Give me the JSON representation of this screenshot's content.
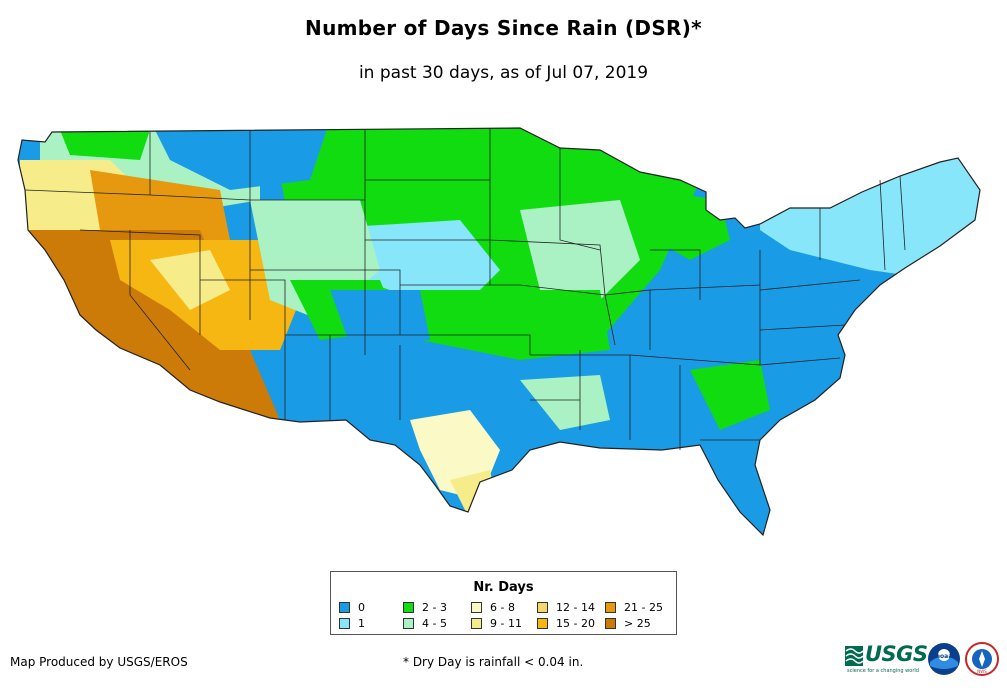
{
  "title": "Number of Days Since Rain (DSR)*",
  "subtitle": "in past 30 days, as of Jul 07, 2019",
  "legend": {
    "title": "Nr. Days",
    "items": [
      {
        "label": "0",
        "color": "#1a9be6"
      },
      {
        "label": "1",
        "color": "#87e6fa"
      },
      {
        "label": "2 - 3",
        "color": "#10dc10"
      },
      {
        "label": "4 - 5",
        "color": "#aaf2c4"
      },
      {
        "label": "6 - 8",
        "color": "#fbf9c6"
      },
      {
        "label": "9 - 11",
        "color": "#f6ec8a"
      },
      {
        "label": "12 - 14",
        "color": "#f7d66c"
      },
      {
        "label": "15 - 20",
        "color": "#f6b712"
      },
      {
        "label": "21 - 25",
        "color": "#e6990e"
      },
      {
        "label": "> 25",
        "color": "#cc7a08"
      }
    ]
  },
  "footer": {
    "producer": "Map Produced by USGS/EROS",
    "note": "* Dry Day is rainfall < 0.04 in."
  },
  "logos": {
    "usgs": "USGS",
    "usgs_tagline": "science for a changing world",
    "noaa": "noaa",
    "nws": "NWS"
  }
}
